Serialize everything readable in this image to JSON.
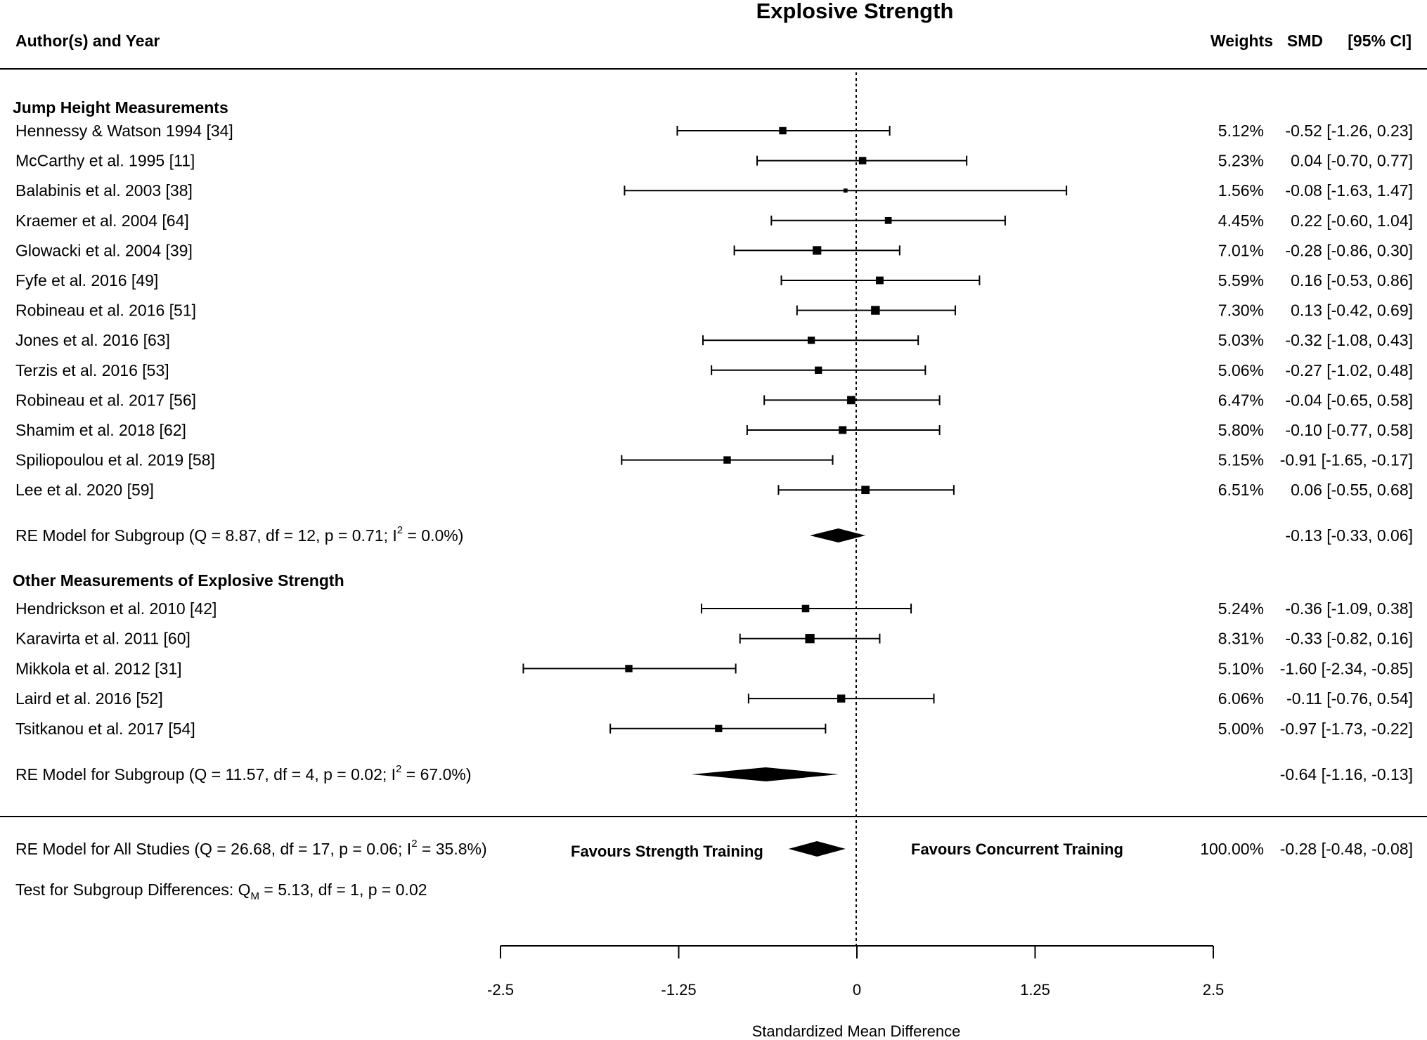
{
  "chart_data": {
    "type": "forest",
    "title": "Explosive Strength",
    "xlabel": "Standardized Mean Difference",
    "xlim": [
      -2.5,
      2.5
    ],
    "xticks": [
      "-2.5",
      "-1.25",
      "0",
      "1.25",
      "2.5"
    ],
    "columns": {
      "study": "Author(s) and Year",
      "weights": "Weights",
      "smd": "SMD",
      "ci": "[95% CI]"
    },
    "annotations": {
      "left": "Favours Strength Training",
      "right": "Favours Concurrent Training"
    },
    "groups": [
      {
        "name": "Jump Height Measurements",
        "studies": [
          {
            "label": "Hennessy & Watson 1994 [34]",
            "weight": "5.12%",
            "est": -0.52,
            "lo": -1.26,
            "hi": 0.23,
            "text": "-0.52 [-1.26,  0.23]"
          },
          {
            "label": "McCarthy et al. 1995 [11]",
            "weight": "5.23%",
            "est": 0.04,
            "lo": -0.7,
            "hi": 0.77,
            "text": "0.04 [-0.70,  0.77]"
          },
          {
            "label": "Balabinis et al. 2003 [38]",
            "weight": "1.56%",
            "est": -0.08,
            "lo": -1.63,
            "hi": 1.47,
            "text": "-0.08 [-1.63,  1.47]"
          },
          {
            "label": "Kraemer et al. 2004 [64]",
            "weight": "4.45%",
            "est": 0.22,
            "lo": -0.6,
            "hi": 1.04,
            "text": "0.22 [-0.60,  1.04]"
          },
          {
            "label": "Glowacki et al. 2004 [39]",
            "weight": "7.01%",
            "est": -0.28,
            "lo": -0.86,
            "hi": 0.3,
            "text": "-0.28 [-0.86,  0.30]"
          },
          {
            "label": "Fyfe et al. 2016 [49]",
            "weight": "5.59%",
            "est": 0.16,
            "lo": -0.53,
            "hi": 0.86,
            "text": "0.16 [-0.53,  0.86]"
          },
          {
            "label": "Robineau et al. 2016 [51]",
            "weight": "7.30%",
            "est": 0.13,
            "lo": -0.42,
            "hi": 0.69,
            "text": "0.13 [-0.42,  0.69]"
          },
          {
            "label": "Jones et al. 2016 [63]",
            "weight": "5.03%",
            "est": -0.32,
            "lo": -1.08,
            "hi": 0.43,
            "text": "-0.32 [-1.08,  0.43]"
          },
          {
            "label": "Terzis et al. 2016 [53]",
            "weight": "5.06%",
            "est": -0.27,
            "lo": -1.02,
            "hi": 0.48,
            "text": "-0.27 [-1.02,  0.48]"
          },
          {
            "label": "Robineau et al. 2017 [56]",
            "weight": "6.47%",
            "est": -0.04,
            "lo": -0.65,
            "hi": 0.58,
            "text": "-0.04 [-0.65,  0.58]"
          },
          {
            "label": "Shamim et al. 2018 [62]",
            "weight": "5.80%",
            "est": -0.1,
            "lo": -0.77,
            "hi": 0.58,
            "text": "-0.10 [-0.77,  0.58]"
          },
          {
            "label": "Spiliopoulou et al. 2019 [58]",
            "weight": "5.15%",
            "est": -0.91,
            "lo": -1.65,
            "hi": -0.17,
            "text": "-0.91 [-1.65, -0.17]"
          },
          {
            "label": "Lee et al. 2020 [59]",
            "weight": "6.51%",
            "est": 0.06,
            "lo": -0.55,
            "hi": 0.68,
            "text": "0.06 [-0.55,  0.68]"
          }
        ],
        "model": {
          "label": "RE Model for Subgroup (Q = 8.87, df = 12, p = 0.71; I",
          "sup": "2",
          "tail": " = 0.0%)",
          "est": -0.13,
          "lo": -0.33,
          "hi": 0.06,
          "text": "-0.13 [-0.33,  0.06]"
        }
      },
      {
        "name": "Other Measurements of Explosive Strength",
        "studies": [
          {
            "label": "Hendrickson et al. 2010 [42]",
            "weight": "5.24%",
            "est": -0.36,
            "lo": -1.09,
            "hi": 0.38,
            "text": "-0.36 [-1.09,  0.38]"
          },
          {
            "label": "Karavirta et al. 2011 [60]",
            "weight": "8.31%",
            "est": -0.33,
            "lo": -0.82,
            "hi": 0.16,
            "text": "-0.33 [-0.82,  0.16]"
          },
          {
            "label": "Mikkola et al. 2012 [31]",
            "weight": "5.10%",
            "est": -1.6,
            "lo": -2.34,
            "hi": -0.85,
            "text": "-1.60 [-2.34, -0.85]"
          },
          {
            "label": "Laird et al. 2016 [52]",
            "weight": "6.06%",
            "est": -0.11,
            "lo": -0.76,
            "hi": 0.54,
            "text": "-0.11 [-0.76,  0.54]"
          },
          {
            "label": "Tsitkanou et al. 2017 [54]",
            "weight": "5.00%",
            "est": -0.97,
            "lo": -1.73,
            "hi": -0.22,
            "text": "-0.97 [-1.73, -0.22]"
          }
        ],
        "model": {
          "label": "RE Model for Subgroup (Q = 11.57, df = 4, p = 0.02; I",
          "sup": "2",
          "tail": " = 67.0%)",
          "est": -0.64,
          "lo": -1.16,
          "hi": -0.13,
          "text": "-0.64 [-1.16, -0.13]"
        }
      }
    ],
    "overall": {
      "label": "RE Model for All Studies (Q = 26.68, df = 17, p = 0.06; I",
      "sup": "2",
      "tail": " = 35.8%)",
      "weight": "100.00%",
      "est": -0.28,
      "lo": -0.48,
      "hi": -0.08,
      "text": "-0.28 [-0.48, -0.08]"
    },
    "subgroup_test": {
      "prefix": "Test for Subgroup Differences: Q",
      "sub": "M",
      "tail": " = 5.13, df = 1, p = 0.02"
    }
  }
}
